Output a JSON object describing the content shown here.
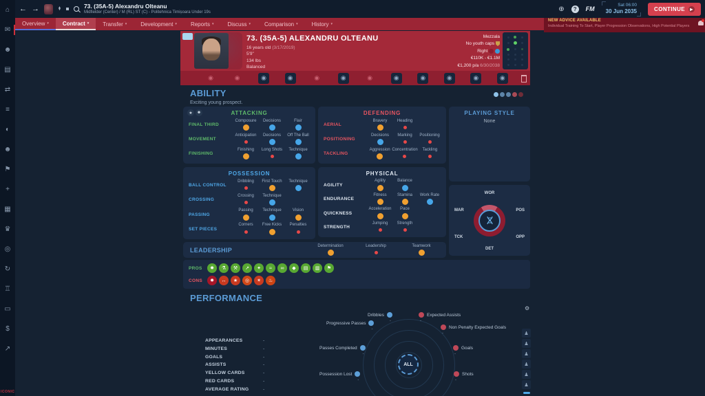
{
  "colors": {
    "accent_blue": "#4fa8e8",
    "attr_good": "#46a6e8",
    "attr_average": "#f0a030",
    "attr_poor": "#e84848",
    "banner_red": "#a42939",
    "tab_red": "#9c2535",
    "continue_red": "#d5404e"
  },
  "sidebar": {
    "logo": "ICONIC",
    "icons": [
      {
        "name": "home",
        "glyph": "⌂"
      },
      {
        "name": "inbox",
        "glyph": "✉",
        "badge": true
      },
      {
        "name": "squad",
        "glyph": "☻"
      },
      {
        "name": "tactics",
        "glyph": "▤"
      },
      {
        "name": "transfers",
        "glyph": "⇄"
      },
      {
        "name": "squad-planner",
        "glyph": "≡"
      },
      {
        "name": "world",
        "glyph": "◐"
      },
      {
        "name": "staff",
        "glyph": "☻"
      },
      {
        "name": "training",
        "glyph": "⚑"
      },
      {
        "name": "medical",
        "glyph": "+"
      },
      {
        "name": "schedule",
        "glyph": "▦"
      },
      {
        "name": "competitions",
        "glyph": "♛"
      },
      {
        "name": "scouting",
        "glyph": "◎"
      },
      {
        "name": "history",
        "glyph": "↻"
      },
      {
        "name": "club",
        "glyph": "♖"
      },
      {
        "name": "finances",
        "glyph": "▭"
      },
      {
        "name": "board",
        "glyph": "$"
      },
      {
        "name": "analytics",
        "glyph": "↗"
      }
    ]
  },
  "topbar": {
    "back": "←",
    "forward": "→",
    "help": "?",
    "fm": "FM",
    "title": "73. (35A-5) Alexandru Olteanu",
    "subtitle": "Midfielder (Center) / M (RL) ST (C) - Politehnica Timișoara Under 19s",
    "time": "Sat 06:00",
    "date": "30 Jun 2035",
    "continue_label": "CONTINUE"
  },
  "tabs": {
    "items": [
      {
        "label": "Overview",
        "selected": false,
        "accent": true
      },
      {
        "label": "Contract",
        "selected": true,
        "accent": false
      },
      {
        "label": "Transfer",
        "selected": false,
        "accent": false
      },
      {
        "label": "Development",
        "selected": false,
        "accent": false
      },
      {
        "label": "Reports",
        "selected": false,
        "accent": false
      },
      {
        "label": "Discuss",
        "selected": false,
        "accent": false
      },
      {
        "label": "Comparison",
        "selected": false,
        "accent": false
      },
      {
        "label": "History",
        "selected": false,
        "accent": false
      }
    ]
  },
  "advice": {
    "title": "NEW ADVICE AVAILABLE",
    "subtitle": "Individual Training To Start, Player Progression Observations, High Potential Players"
  },
  "banner": {
    "name": "73. (35A-5) ALEXANDRU OLTEANU",
    "age": "16 years old",
    "birthdate": "(3/17/2019)",
    "height": "5'9\"",
    "weight": "134 lbs",
    "body": "Balanced",
    "role": "Mezzala",
    "caps": "No youth caps",
    "foot": "Right",
    "value": "€110K - €1.1M",
    "wage": "€1,200 p/a",
    "expires": "6/30/2038",
    "position_grid": [
      [
        0,
        2,
        0
      ],
      [
        0,
        3,
        0
      ],
      [
        2,
        0,
        1
      ],
      [
        0,
        0,
        0
      ],
      [
        0,
        0,
        0
      ],
      [
        0,
        0,
        0
      ]
    ]
  },
  "banner_icons": [
    {
      "name": "info",
      "active": false
    },
    {
      "name": "face",
      "active": false
    },
    {
      "name": "attributes",
      "active": true
    },
    {
      "name": "pie-chart",
      "active": true
    },
    {
      "name": "clock",
      "active": false
    },
    {
      "name": "pencil",
      "active": true
    },
    {
      "name": "chat",
      "active": false
    },
    {
      "name": "gear",
      "active": true
    },
    {
      "name": "ball",
      "active": true
    },
    {
      "name": "whistle",
      "active": true
    },
    {
      "name": "globe",
      "active": true
    },
    {
      "name": "gauge",
      "active": true
    }
  ],
  "ability": {
    "title": "ABILITY",
    "subtitle": "Exciting young prospect.",
    "rating_dots": [
      "#8fc3ea",
      "#5d84a8",
      "#5d84a8",
      "#a84a55",
      "#6e2d38"
    ],
    "panels": {
      "attacking": {
        "title": "ATTACKING",
        "color": "green",
        "rows": [
          {
            "label": "FINAL THIRD",
            "attrs": [
              {
                "n": "Composure",
                "l": "avg"
              },
              {
                "n": "Decisions",
                "l": "good"
              },
              {
                "n": "Flair",
                "l": "good"
              }
            ]
          },
          {
            "label": "MOVEMENT",
            "attrs": [
              {
                "n": "Anticipation",
                "l": "poor"
              },
              {
                "n": "Decisions",
                "l": "good"
              },
              {
                "n": "Off The Ball",
                "l": "good"
              }
            ]
          },
          {
            "label": "FINISHING",
            "attrs": [
              {
                "n": "Finishing",
                "l": "avg"
              },
              {
                "n": "Long Shots",
                "l": "poor"
              },
              {
                "n": "Technique",
                "l": "good"
              }
            ]
          }
        ]
      },
      "defending": {
        "title": "DEFENDING",
        "color": "red",
        "rows": [
          {
            "label": "AERIAL",
            "attrs": [
              {
                "n": "Bravery",
                "l": "avg"
              },
              {
                "n": "Heading",
                "l": "poor"
              }
            ]
          },
          {
            "label": "POSITIONING",
            "attrs": [
              {
                "n": "Decisions",
                "l": "good"
              },
              {
                "n": "Marking",
                "l": "poor"
              },
              {
                "n": "Positioning",
                "l": "poor"
              }
            ]
          },
          {
            "label": "TACKLING",
            "attrs": [
              {
                "n": "Aggression",
                "l": "avg"
              },
              {
                "n": "Concentration",
                "l": "poor"
              },
              {
                "n": "Tackling",
                "l": "poor"
              }
            ]
          }
        ]
      },
      "possession": {
        "title": "POSSESSION",
        "color": "blue",
        "rows": [
          {
            "label": "BALL CONTROL",
            "attrs": [
              {
                "n": "Dribbling",
                "l": "poor"
              },
              {
                "n": "First Touch",
                "l": "avg"
              },
              {
                "n": "Technique",
                "l": "good"
              }
            ]
          },
          {
            "label": "CROSSING",
            "attrs": [
              {
                "n": "Crossing",
                "l": "poor"
              },
              {
                "n": "Technique",
                "l": "good"
              }
            ]
          },
          {
            "label": "PASSING",
            "attrs": [
              {
                "n": "Passing",
                "l": "avg"
              },
              {
                "n": "Technique",
                "l": "good"
              },
              {
                "n": "Vision",
                "l": "avg"
              }
            ]
          },
          {
            "label": "SET PIECES",
            "attrs": [
              {
                "n": "Corners",
                "l": "poor"
              },
              {
                "n": "Free Kicks",
                "l": "avg"
              },
              {
                "n": "Penalties",
                "l": "poor"
              }
            ]
          }
        ]
      },
      "physical": {
        "title": "PHYSICAL",
        "color": "white",
        "rows": [
          {
            "label": "AGILITY",
            "attrs": [
              {
                "n": "Agility",
                "l": "avg"
              },
              {
                "n": "Balance",
                "l": "good"
              }
            ]
          },
          {
            "label": "ENDURANCE",
            "attrs": [
              {
                "n": "Fitness",
                "l": "avg"
              },
              {
                "n": "Stamina",
                "l": "avg"
              },
              {
                "n": "Work Rate",
                "l": "good"
              }
            ]
          },
          {
            "label": "QUICKNESS",
            "attrs": [
              {
                "n": "Acceleration",
                "l": "avg"
              },
              {
                "n": "Pace",
                "l": "avg"
              }
            ]
          },
          {
            "label": "STRENGTH",
            "attrs": [
              {
                "n": "Jumping",
                "l": "poor"
              },
              {
                "n": "Strength",
                "l": "poor"
              }
            ]
          }
        ]
      }
    },
    "leadership": {
      "title": "LEADERSHIP",
      "attrs": [
        {
          "n": "Determination",
          "l": "avg"
        },
        {
          "n": "Leadership",
          "l": "poor"
        },
        {
          "n": "Teamwork",
          "l": "avg"
        }
      ]
    }
  },
  "playing_style": {
    "title": "PLAYING STYLE",
    "value": "None"
  },
  "dna": {
    "labels": [
      "WOR",
      "POS",
      "OPP",
      "DET",
      "TCK",
      "MAR"
    ]
  },
  "traits": {
    "pros_label": "PROS",
    "cons_label": "CONS",
    "pros": [
      "✹",
      "⚗",
      "⚒",
      "↗",
      "✦",
      "≈",
      "∞",
      "◆",
      "▤",
      "▥",
      "⚑"
    ],
    "cons": [
      "✹",
      "↔",
      "★",
      "◎",
      "✶",
      "♨"
    ]
  },
  "performance": {
    "title": "PERFORMANCE",
    "stats": [
      {
        "label": "APPEARANCES",
        "value": "-"
      },
      {
        "label": "MINUTES",
        "value": "-"
      },
      {
        "label": "GOALS",
        "value": "-"
      },
      {
        "label": "ASSISTS",
        "value": "-"
      },
      {
        "label": "YELLOW CARDS",
        "value": "-"
      },
      {
        "label": "RED CARDS",
        "value": "-"
      },
      {
        "label": "AVERAGE RATING",
        "value": "-"
      }
    ],
    "radar": {
      "center": "ALL",
      "points": [
        {
          "label": "Dribbles",
          "color": "blue",
          "side": "left",
          "value": "-"
        },
        {
          "label": "Expected Assists",
          "color": "red",
          "side": "right",
          "value": "-"
        },
        {
          "label": "Non Penalty Expected Goals",
          "color": "red",
          "side": "right",
          "value": "-"
        },
        {
          "label": "Goals",
          "color": "red",
          "side": "right",
          "value": "-"
        },
        {
          "label": "Shots",
          "color": "red",
          "side": "right",
          "value": "-"
        },
        {
          "label": "Possession Lost",
          "color": "blue",
          "side": "left",
          "value": "-"
        },
        {
          "label": "Passes Completed",
          "color": "blue",
          "side": "left",
          "value": "-"
        },
        {
          "label": "Progressive Passes",
          "color": "blue",
          "side": "left",
          "value": "-"
        }
      ]
    },
    "tools": [
      "♟",
      "♟",
      "♟",
      "♟",
      "♟",
      "♟"
    ],
    "gear": "⚙"
  }
}
